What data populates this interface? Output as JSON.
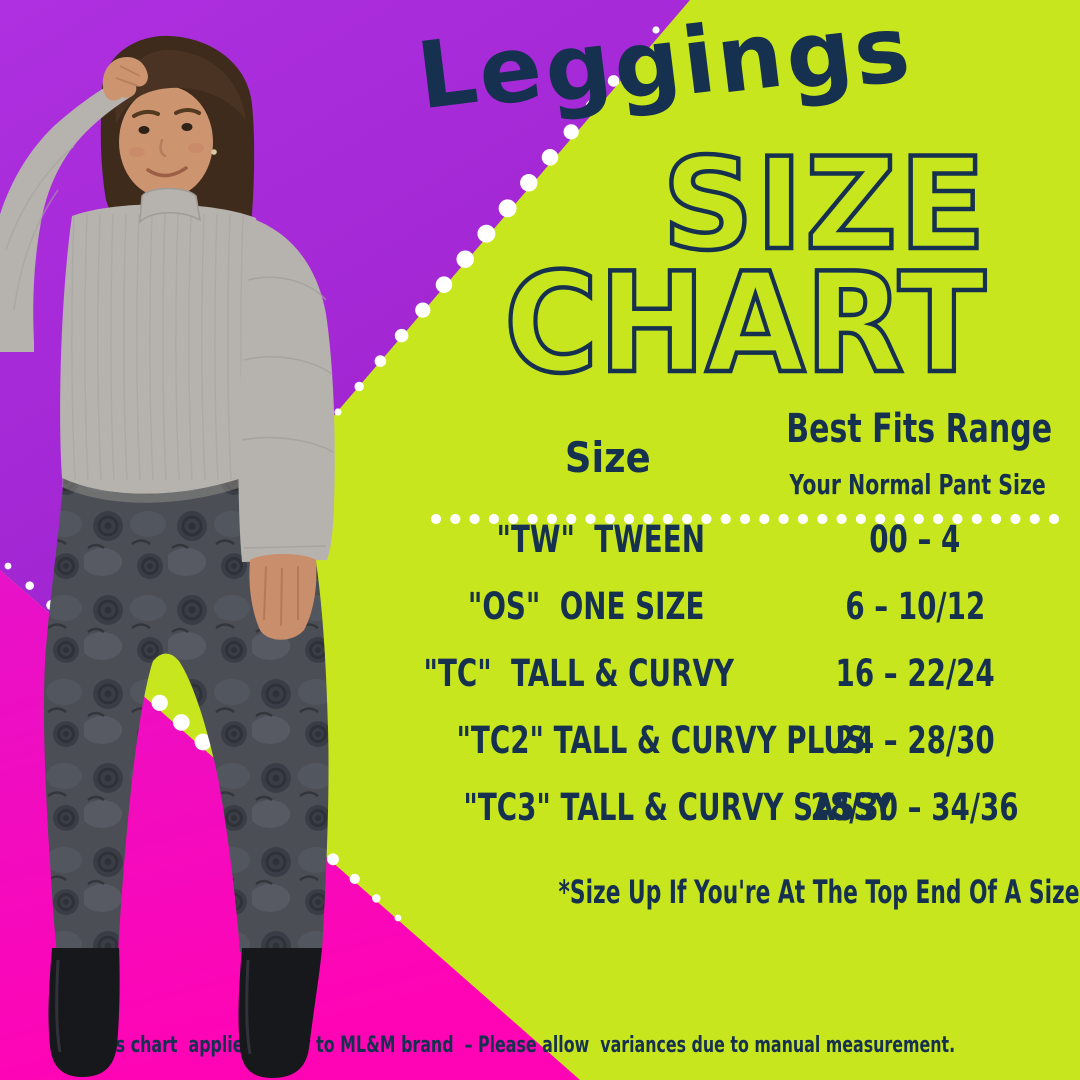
{
  "title": "Leggings",
  "heading": {
    "size_word": "SIZE",
    "chart_word": "CHART"
  },
  "table": {
    "col1_header": "Size",
    "col2_header": "Best Fits Range",
    "col2_subheader": "Your Normal Pant Size",
    "rows": [
      {
        "size": "\"TW\"  TWEEN",
        "range": "00 – 4"
      },
      {
        "size": "\"OS\"  ONE SIZE",
        "range": "6 – 10/12"
      },
      {
        "size": "\"TC\"  TALL & CURVY",
        "range": "16 – 22/24"
      },
      {
        "size": "\"TC2\" TALL & CURVY PLUS",
        "range": "24 – 28/30"
      },
      {
        "size": "\"TC3\" TALL & CURVY SASSY",
        "range": "28/30 – 34/36"
      }
    ]
  },
  "footnote": "*Size Up If You're At The Top End Of A Size.",
  "disclaimer": "*This chart  applies solely to ML&M brand  – Please allow  variances due to manual measurement.",
  "colors": {
    "purple": "#a42ad6",
    "pink": "#f807bb",
    "green": "#c8e61d",
    "navy": "#16314f",
    "dots": "#ffffff"
  },
  "chart_data": {
    "type": "table",
    "title": "Leggings Size Chart",
    "columns": [
      "Size",
      "Best Fits Range — Your Normal Pant Size"
    ],
    "rows": [
      [
        "\"TW\" TWEEN",
        "00 – 4"
      ],
      [
        "\"OS\" ONE SIZE",
        "6 – 10/12"
      ],
      [
        "\"TC\" TALL & CURVY",
        "16 – 22/24"
      ],
      [
        "\"TC2\" TALL & CURVY PLUS",
        "24 – 28/30"
      ],
      [
        "\"TC3\" TALL & CURVY SASSY",
        "28/30 – 34/36"
      ]
    ],
    "notes": [
      "*Size Up If You're At The Top End Of A Size.",
      "*This chart applies solely to ML&M brand – Please allow variances due to manual measurement."
    ]
  }
}
